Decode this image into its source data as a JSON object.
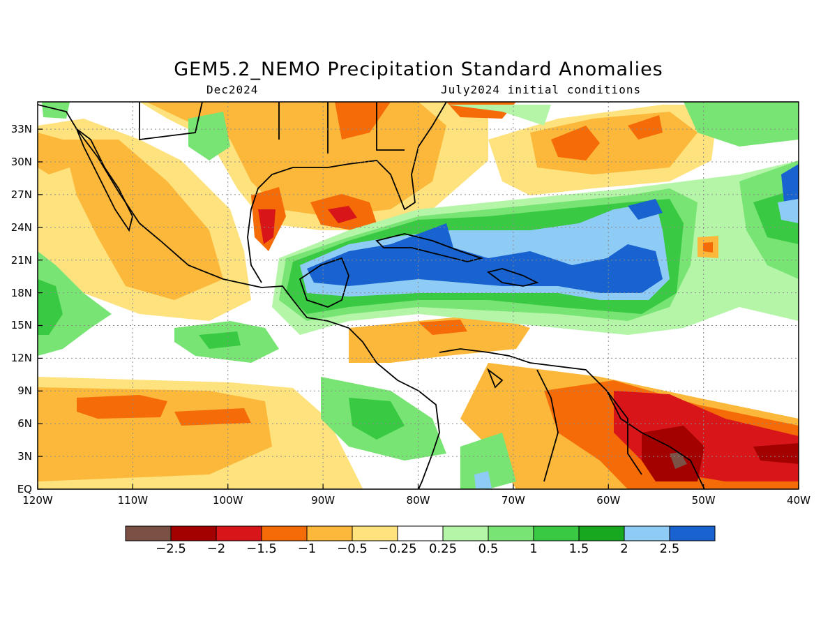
{
  "title": "GEM5.2_NEMO Precipitation Standard Anomalies",
  "subtitle_left": "Dec2024",
  "subtitle_right": "July2024 initial conditions",
  "lat_labels": [
    "33N",
    "30N",
    "27N",
    "24N",
    "21N",
    "18N",
    "15N",
    "12N",
    "9N",
    "6N",
    "3N",
    "EQ"
  ],
  "lon_labels": [
    "120W",
    "110W",
    "100W",
    "90W",
    "80W",
    "70W",
    "60W",
    "50W",
    "40W"
  ],
  "colorbar": {
    "colors": [
      "#7b5146",
      "#a30000",
      "#d8161a",
      "#f56b08",
      "#fcb83a",
      "#fee27d",
      "#ffffff",
      "#b4f5a8",
      "#78e473",
      "#39c943",
      "#18a81f",
      "#8ecbf5",
      "#1863cf"
    ],
    "labels": [
      "−2.5",
      "−2",
      "−1.5",
      "−1",
      "−0.5",
      "−0.25",
      "0.25",
      "0.5",
      "1",
      "1.5",
      "2",
      "2.5"
    ]
  },
  "legend_colors": {
    "land_outline": "#000000",
    "neutral": "#ffffff"
  }
}
